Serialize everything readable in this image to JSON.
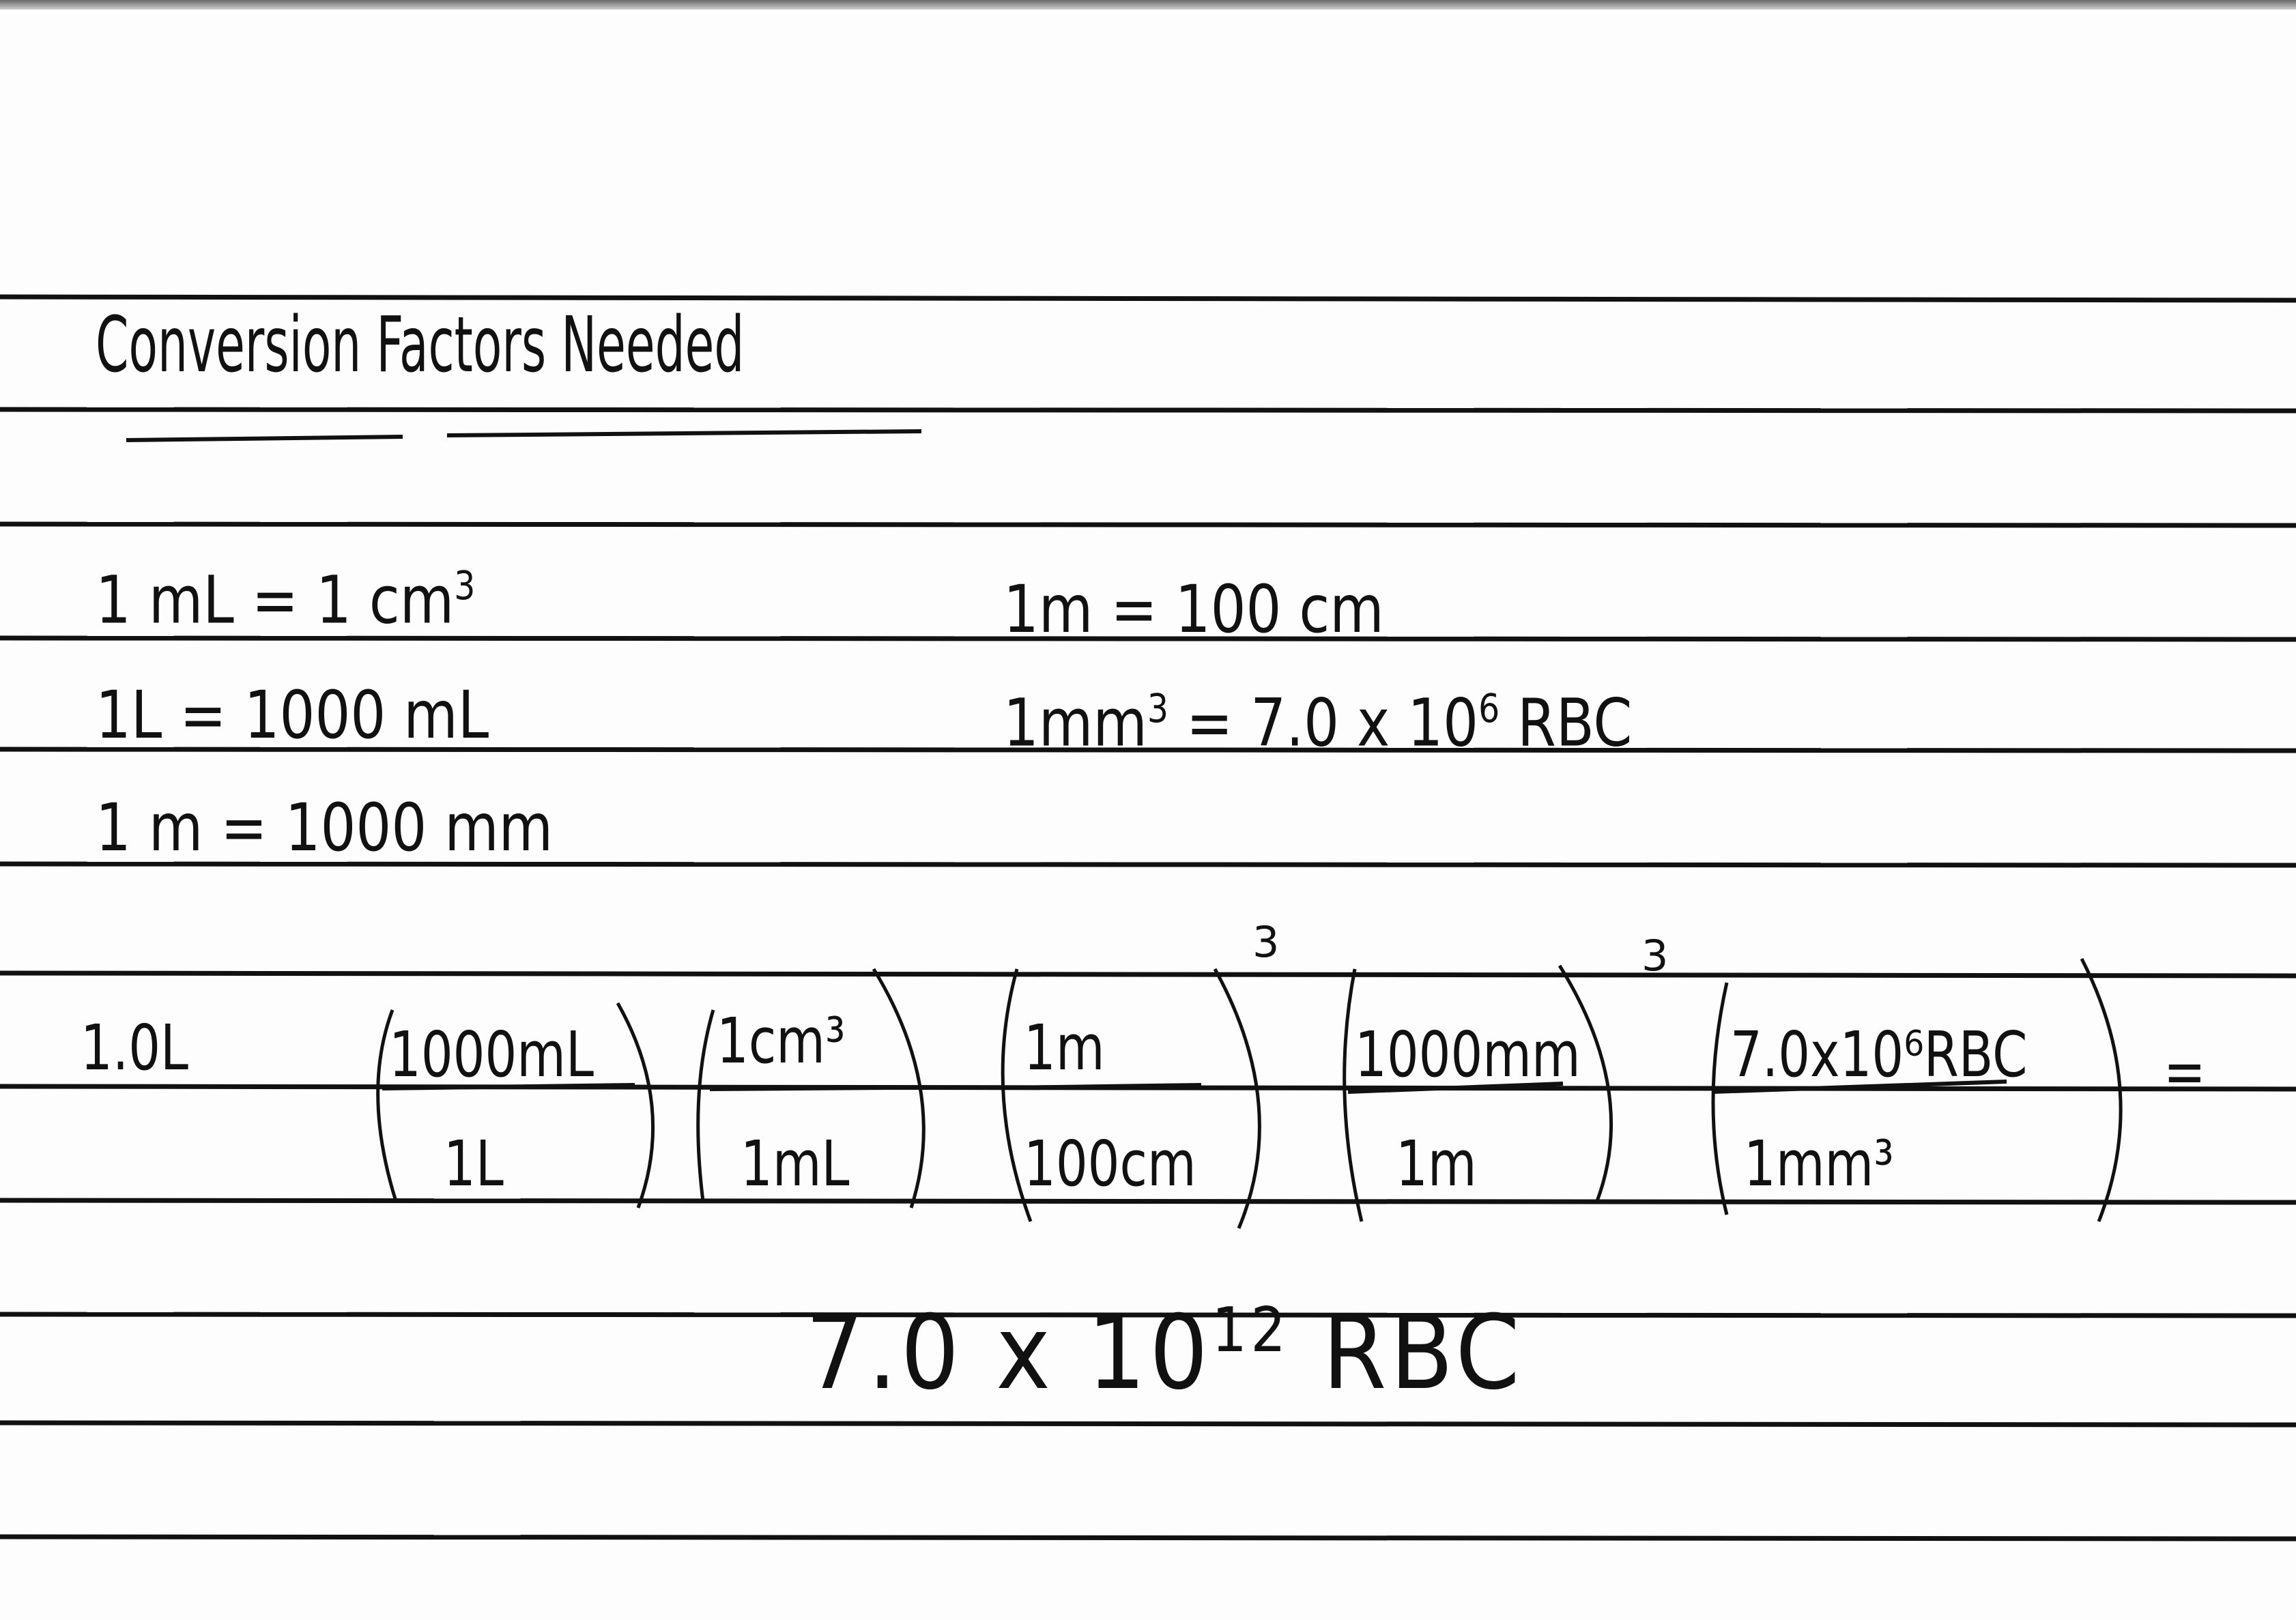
{
  "title": "Conversion Factors Needed",
  "factors_left": [
    {
      "lhs": "1 mL",
      "rhs": "1 cm",
      "rhs_exp": "3"
    },
    {
      "lhs": "1L",
      "rhs": "1000 mL",
      "rhs_exp": ""
    },
    {
      "lhs": "1 m",
      "rhs": "1000 mm",
      "rhs_exp": ""
    }
  ],
  "factors_right": [
    {
      "lhs": "1m",
      "lhs_exp": "",
      "rhs": "100 cm"
    },
    {
      "lhs": "1mm",
      "lhs_exp": "3",
      "rhs": "7.0 x 10",
      "rhs_exp": "6",
      "rhs_unit": "RBC"
    }
  ],
  "equals": "=",
  "calculation": {
    "start": "1.0L",
    "fractions": [
      {
        "num": "1000mL",
        "den": "1L",
        "power": ""
      },
      {
        "num": "1cm³",
        "den": "1mL",
        "power": ""
      },
      {
        "num": "1m",
        "den": "100cm",
        "power": "3"
      },
      {
        "num": "1000mm",
        "den": "1m",
        "power": "3"
      },
      {
        "num": "7.0x10⁶RBC",
        "den": "1mm³",
        "power": ""
      }
    ],
    "equals": "="
  },
  "result": {
    "mantissa": "7.0 x 10",
    "exp": "12",
    "unit": "RBC"
  }
}
